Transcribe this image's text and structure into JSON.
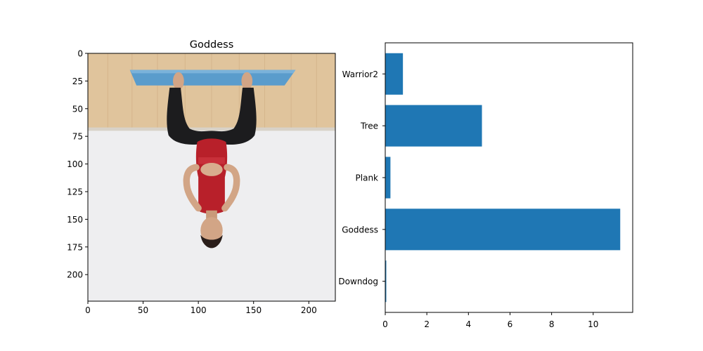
{
  "chart_data": [
    {
      "type": "image",
      "title": "Goddess",
      "xlabel": "",
      "ylabel": "",
      "xlim": [
        0,
        224
      ],
      "ylim": [
        224,
        0
      ],
      "x_ticks": [
        0,
        50,
        100,
        150,
        200
      ],
      "y_ticks": [
        0,
        25,
        50,
        75,
        100,
        125,
        150,
        175,
        200
      ],
      "image_description_colors": {
        "floor": "#e0c49c",
        "wall": "#ececee",
        "mat": "#5a9ccc",
        "top": "#b8202a",
        "pants": "#1c1c1e",
        "skin": "#d2a586"
      }
    },
    {
      "type": "bar",
      "orientation": "horizontal",
      "title": "",
      "xlabel": "",
      "ylabel": "",
      "categories": [
        "Downdog",
        "Goddess",
        "Plank",
        "Tree",
        "Warrior2"
      ],
      "values": [
        0.05,
        11.3,
        0.25,
        4.65,
        0.85
      ],
      "xlim": [
        0,
        11.9
      ],
      "x_ticks": [
        0,
        2,
        4,
        6,
        8,
        10
      ],
      "bar_color": "#1f77b4",
      "grid": false
    }
  ]
}
